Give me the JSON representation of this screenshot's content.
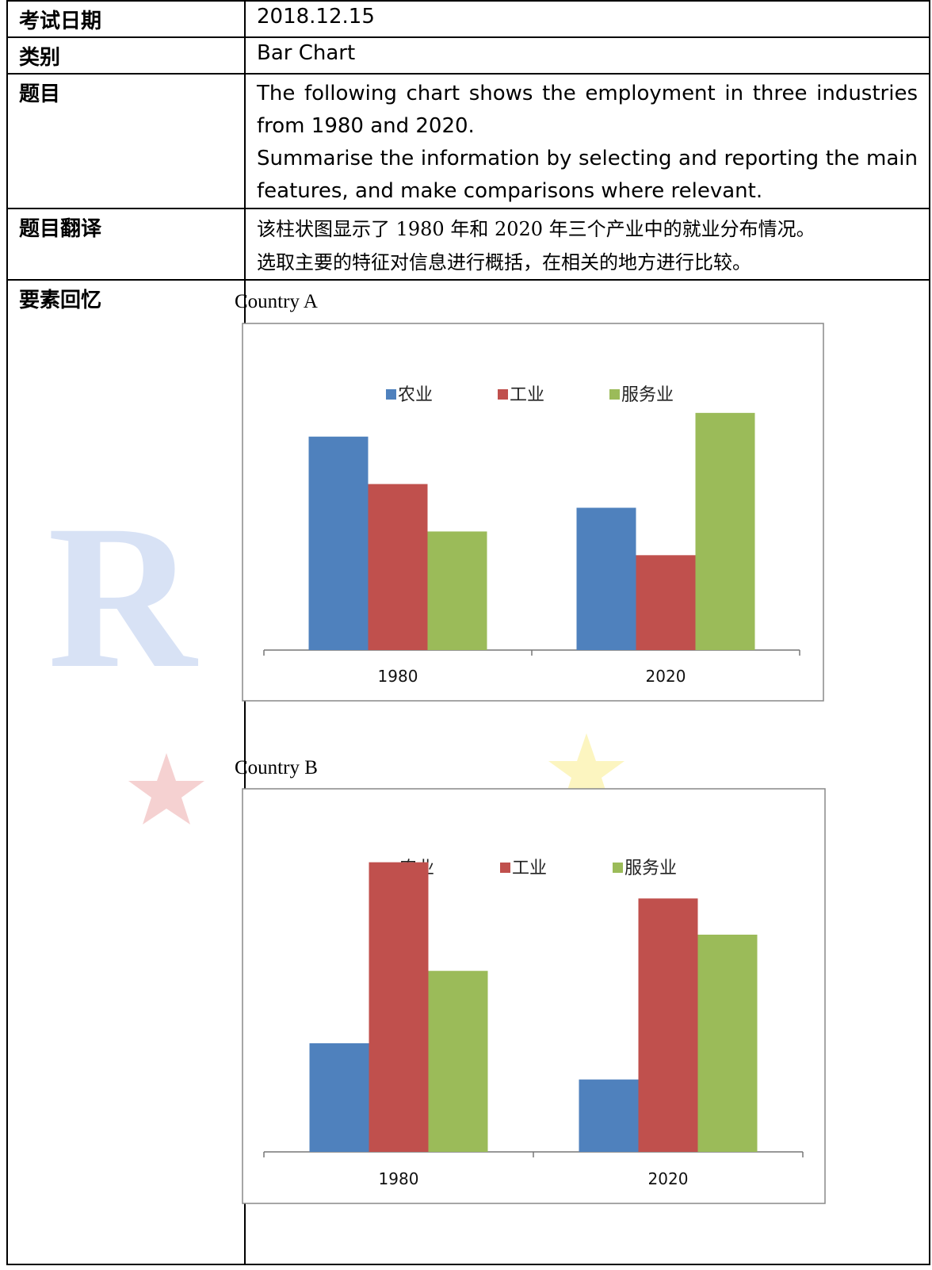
{
  "table": {
    "rows": [
      {
        "label": "考试日期",
        "value": "2018.12.15"
      },
      {
        "label": "类别",
        "value": "Bar Chart"
      },
      {
        "label": "题目",
        "lines": [
          "The following chart shows the employment in three industries from 1980 and 2020.",
          "Summarise the information by selecting and reporting the main features, and make comparisons where relevant."
        ]
      },
      {
        "label": "题目翻译",
        "lines": [
          "该柱状图显示了 1980 年和 2020 年三个产业中的就业分布情况。",
          "选取主要的特征对信息进行概括，在相关的地方进行比较。"
        ]
      },
      {
        "label": "要素回忆"
      }
    ]
  },
  "chart_data": [
    {
      "type": "bar",
      "title": "Country A",
      "categories": [
        "1980",
        "2020"
      ],
      "series": [
        {
          "name": "农业",
          "color": "#4f81bd",
          "values": [
            45,
            30
          ]
        },
        {
          "name": "工业",
          "color": "#c0504d",
          "values": [
            35,
            20
          ]
        },
        {
          "name": "服务业",
          "color": "#9bbb59",
          "values": [
            25,
            50
          ]
        }
      ],
      "ylim": [
        0,
        60
      ],
      "legend": "top-center",
      "grid": false
    },
    {
      "type": "bar",
      "title": "Country B",
      "categories": [
        "1980",
        "2020"
      ],
      "series": [
        {
          "name": "农业",
          "color": "#4f81bd",
          "values": [
            15,
            10
          ]
        },
        {
          "name": "工业",
          "color": "#c0504d",
          "values": [
            40,
            35
          ]
        },
        {
          "name": "服务业",
          "color": "#9bbb59",
          "values": [
            25,
            30
          ]
        }
      ],
      "ylim": [
        0,
        45
      ],
      "legend": "top-center",
      "grid": false
    }
  ]
}
